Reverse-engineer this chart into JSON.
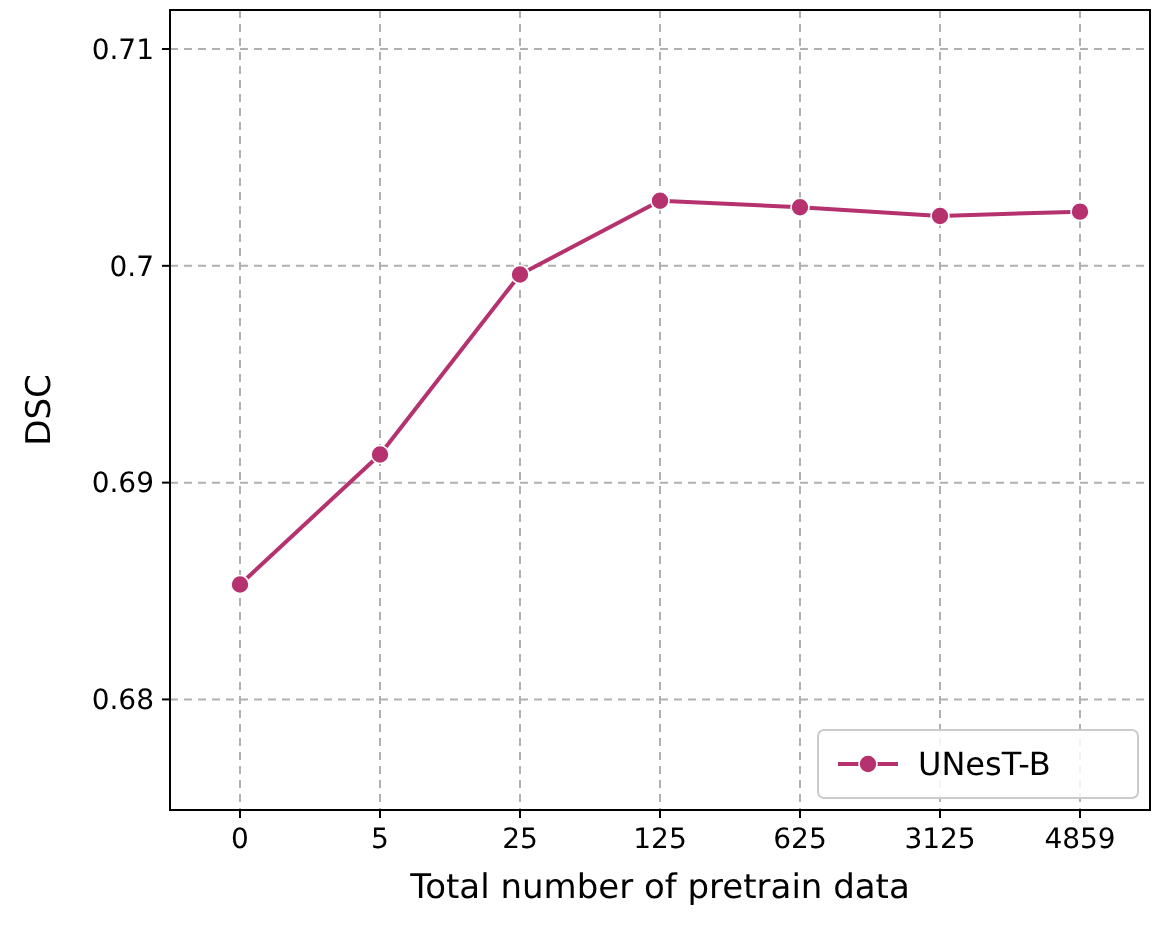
{
  "chart_data": {
    "type": "line",
    "xlabel": "Total number of pretrain data",
    "ylabel": "DSC",
    "categories": [
      "0",
      "5",
      "25",
      "125",
      "625",
      "3125",
      "4859"
    ],
    "series": [
      {
        "name": "UNesT-B",
        "color": "#b5326f",
        "values": [
          0.6853,
          0.6913,
          0.6996,
          0.703,
          0.7027,
          0.7023,
          0.7025
        ]
      }
    ],
    "ylim": [
      0.6749,
      0.7118
    ],
    "yticks": [
      0.68,
      0.69,
      0.7,
      0.71
    ],
    "grid": true,
    "legend": "bottom right",
    "marker": "circle",
    "line_style": "solid"
  }
}
